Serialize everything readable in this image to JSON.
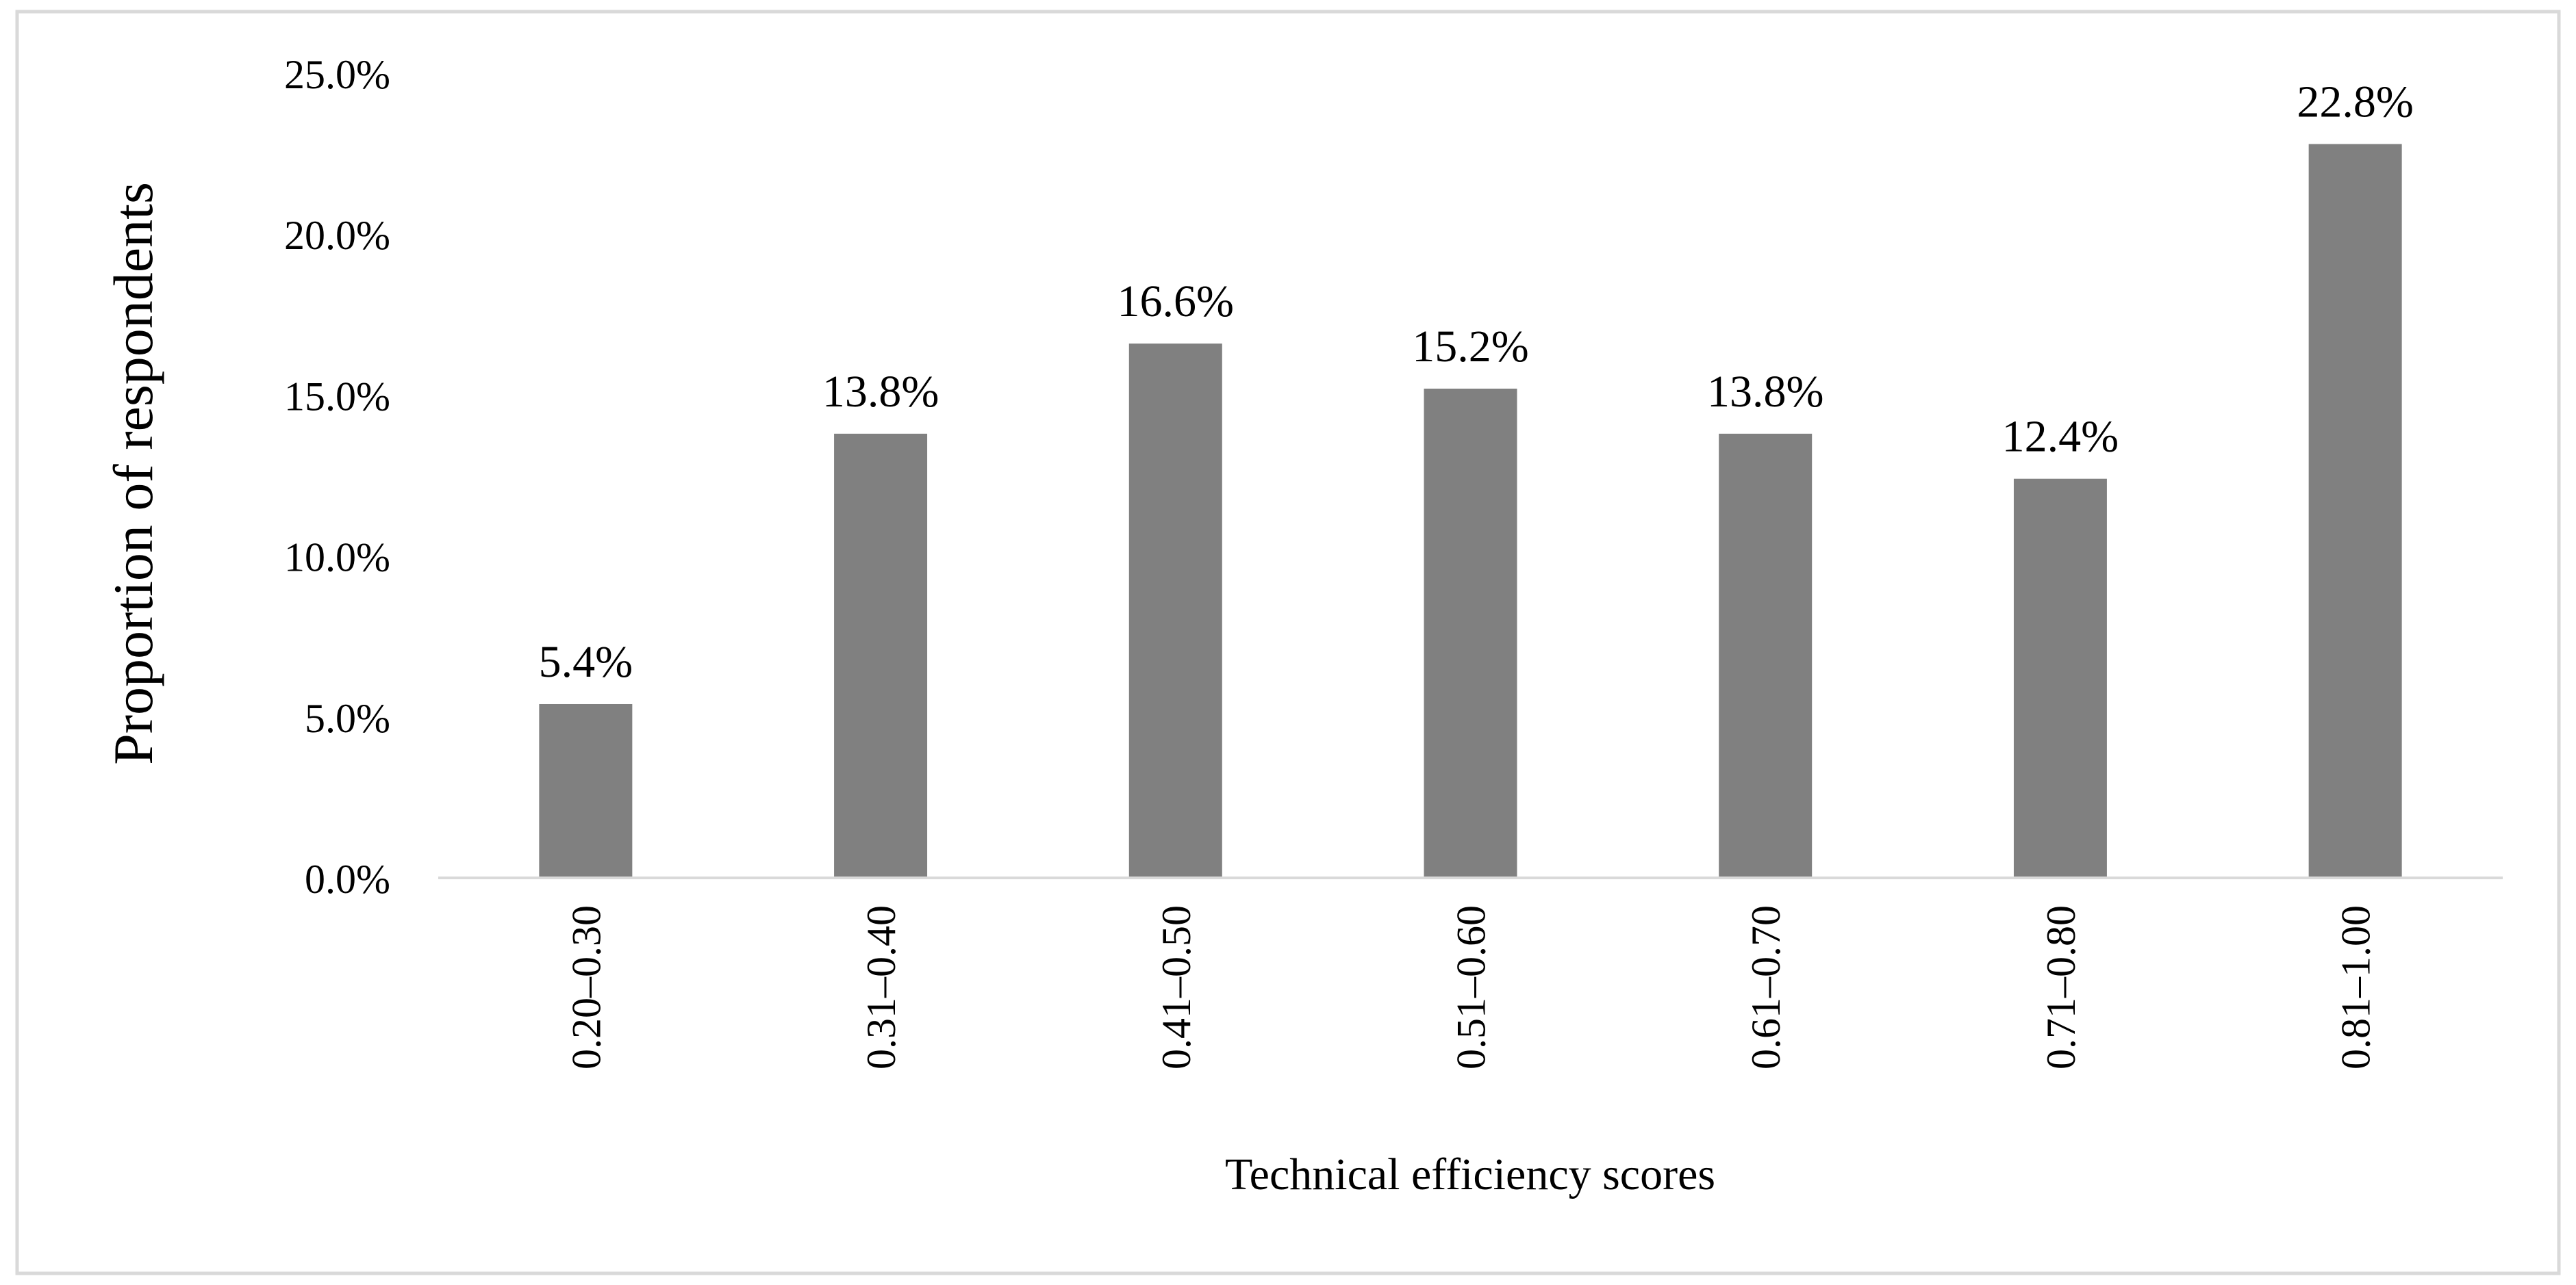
{
  "chart_data": {
    "type": "bar",
    "categories": [
      "0.20–0.30",
      "0.31–0.40",
      "0.41–0.50",
      "0.51–0.60",
      "0.61–0.70",
      "0.71–0.80",
      "0.81–1.00"
    ],
    "values": [
      5.4,
      13.8,
      16.6,
      15.2,
      13.8,
      12.4,
      22.8
    ],
    "data_labels": [
      "5.4%",
      "13.8%",
      "16.6%",
      "15.2%",
      "13.8%",
      "12.4%",
      "22.8%"
    ],
    "title": "",
    "xlabel": "Technical efficiency scores",
    "ylabel": "Proportion of respondents",
    "ylim": [
      0,
      25
    ],
    "yticks": [
      0,
      5,
      10,
      15,
      20,
      25
    ],
    "ytick_labels": [
      "0.0%",
      "5.0%",
      "10.0%",
      "15.0%",
      "20.0%",
      "25.0%"
    ],
    "grid": false,
    "legend": "none",
    "colors": {
      "bar": "#808080",
      "axis": "#d9d9d9",
      "border": "#d9d9d9",
      "text": "#000000"
    }
  }
}
